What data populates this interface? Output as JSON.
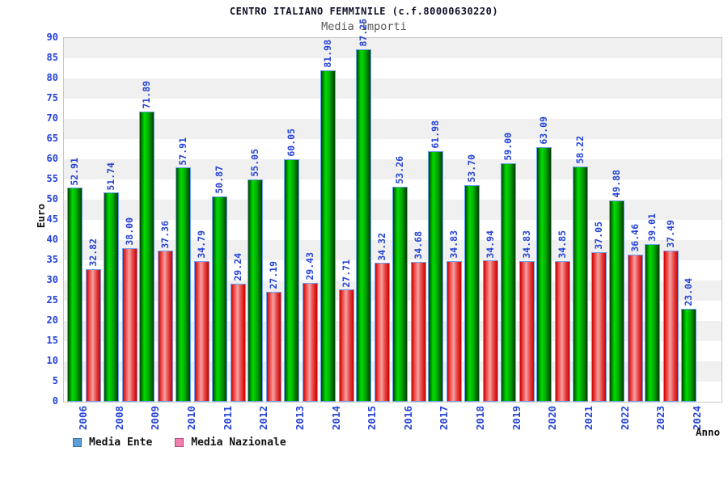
{
  "header": {
    "title": "CENTRO ITALIANO FEMMINILE (c.f.80000630220)",
    "subtitle": "Media Importi"
  },
  "chart_data": {
    "type": "bar",
    "title": "CENTRO ITALIANO FEMMINILE (c.f.80000630220)",
    "subtitle": "Media Importi",
    "xlabel": "Anno",
    "ylabel": "Euro",
    "ylim": [
      0,
      90
    ],
    "ytick_step": 5,
    "grid": "alternating-bands",
    "band_colors": [
      "#ffffff",
      "#f0f0f0"
    ],
    "plot_border_color": "#c8c8c8",
    "label_color": "#2442d6",
    "bar_border_color": "#6fa0f0",
    "legend_position": "bottom-left",
    "categories": [
      "2006",
      "2008",
      "2009",
      "2010",
      "2011",
      "2012",
      "2013",
      "2014",
      "2015",
      "2016",
      "2017",
      "2018",
      "2019",
      "2020",
      "2021",
      "2022",
      "2023",
      "2024"
    ],
    "series": [
      {
        "name": "Media Ente",
        "legend_swatch": "#5f9ed7",
        "legend_swatch_border": "#3a6ea5",
        "gradient": [
          [
            "#004600",
            "0%"
          ],
          [
            "#00dc00",
            "32%"
          ],
          [
            "#00aa00",
            "62%"
          ],
          [
            "#003c00",
            "100%"
          ]
        ],
        "values": [
          "52.91",
          "51.74",
          "71.89",
          "57.91",
          "50.87",
          "55.05",
          "60.05",
          "81.98",
          "87.25",
          "53.26",
          "61.98",
          "53.70",
          "59.00",
          "63.09",
          "58.22",
          "49.88",
          "39.01",
          "23.04"
        ]
      },
      {
        "name": "Media Nazionale",
        "legend_swatch": "#f07fb0",
        "legend_swatch_border": "#b34a7d",
        "gradient": [
          [
            "#d40000",
            "0%"
          ],
          [
            "#f26a6a",
            "30%"
          ],
          [
            "#f4a2a2",
            "45%"
          ],
          [
            "#e84848",
            "70%"
          ],
          [
            "#cc0000",
            "100%"
          ]
        ],
        "values": [
          "32.82",
          "38.00",
          "37.36",
          "34.79",
          "29.24",
          "27.19",
          "29.43",
          "27.71",
          "34.32",
          "34.68",
          "34.83",
          "34.94",
          "34.83",
          "34.85",
          "37.05",
          "36.46",
          "37.49",
          null
        ]
      }
    ]
  }
}
